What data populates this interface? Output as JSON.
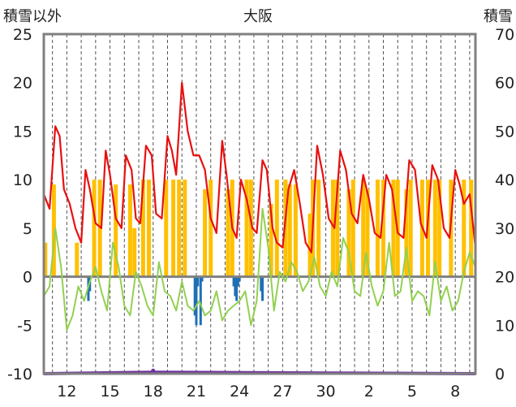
{
  "chart_data": {
    "type": "line",
    "title": "大阪",
    "left_axis_label": "積雪以外",
    "right_axis_label": "積雪",
    "left_ylim": [
      -10,
      25
    ],
    "left_ticks": [
      25,
      20,
      15,
      10,
      5,
      0,
      -5,
      -10
    ],
    "right_ylim": [
      0,
      70
    ],
    "right_ticks": [
      70,
      60,
      50,
      40,
      30,
      20,
      10,
      0
    ],
    "x_ticks": [
      {
        "label": "12",
        "day": 2
      },
      {
        "label": "15",
        "day": 5
      },
      {
        "label": "18",
        "day": 8
      },
      {
        "label": "21",
        "day": 11
      },
      {
        "label": "24",
        "day": 14
      },
      {
        "label": "27",
        "day": 17
      },
      {
        "label": "30",
        "day": 20
      },
      {
        "label": "2",
        "day": 23
      },
      {
        "label": "5",
        "day": 26
      },
      {
        "label": "8",
        "day": 29
      }
    ],
    "x_range_days": [
      0.4,
      30.4
    ],
    "grid": "vertical dashed, one per day",
    "colors": {
      "temperature": "#e81010",
      "humidity_proxy": "#92d050",
      "sunshine": "#ffc000",
      "precipitation": "#1f6fb5",
      "snow": "#7030a0",
      "zero_line": "#808080",
      "frame": "#808080"
    },
    "series": [
      {
        "color": "#e81010",
        "x": [
          0.4,
          0.8,
          1.2,
          1.5,
          1.8,
          2.2,
          2.6,
          3.0,
          3.3,
          3.6,
          4.0,
          4.4,
          4.7,
          5.0,
          5.4,
          5.8,
          6.1,
          6.5,
          6.8,
          7.1,
          7.5,
          7.9,
          8.2,
          8.6,
          9.0,
          9.3,
          9.6,
          10.0,
          10.4,
          10.8,
          11.2,
          11.6,
          12.0,
          12.4,
          12.8,
          13.1,
          13.5,
          13.8,
          14.1,
          14.5,
          14.9,
          15.2,
          15.6,
          15.9,
          16.3,
          16.6,
          17.0,
          17.4,
          17.8,
          18.2,
          18.6,
          19.0,
          19.4,
          19.8,
          20.2,
          20.6,
          21.0,
          21.4,
          21.8,
          22.2,
          22.6,
          23.0,
          23.4,
          23.8,
          24.2,
          24.6,
          25.0,
          25.4,
          25.8,
          26.2,
          26.6,
          27.0,
          27.4,
          27.8,
          28.2,
          28.6,
          29.0,
          29.3,
          29.6,
          30.0,
          30.4
        ],
        "values": [
          8.5,
          7.0,
          15.5,
          14.5,
          9.0,
          7.5,
          5.0,
          3.5,
          11.0,
          9.0,
          5.5,
          5.0,
          13.0,
          10.5,
          6.0,
          5.0,
          12.5,
          11.0,
          6.0,
          5.5,
          13.5,
          12.5,
          6.5,
          6.0,
          14.5,
          13.0,
          10.5,
          20.0,
          15.0,
          12.5,
          12.5,
          11.0,
          6.0,
          4.5,
          14.0,
          10.5,
          5.0,
          4.0,
          10.0,
          8.0,
          5.0,
          4.5,
          12.0,
          11.0,
          5.0,
          3.5,
          3.0,
          9.0,
          11.0,
          7.5,
          3.5,
          2.5,
          13.5,
          10.5,
          6.0,
          5.0,
          13.0,
          11.0,
          6.5,
          5.5,
          10.5,
          8.0,
          4.5,
          4.0,
          10.5,
          9.0,
          4.5,
          4.0,
          12.0,
          11.0,
          5.5,
          4.0,
          11.5,
          10.0,
          5.0,
          4.0,
          11.0,
          9.5,
          7.5,
          8.5,
          3.0
        ]
      },
      {
        "color": "#92d050",
        "x": [
          0.4,
          0.8,
          1.2,
          1.6,
          2.0,
          2.4,
          2.8,
          3.2,
          3.6,
          4.0,
          4.4,
          4.8,
          5.2,
          5.6,
          6.0,
          6.4,
          6.8,
          7.2,
          7.6,
          8.0,
          8.4,
          8.8,
          9.2,
          9.6,
          10.0,
          10.4,
          10.8,
          11.2,
          11.6,
          12.0,
          12.4,
          12.8,
          13.2,
          13.6,
          14.0,
          14.4,
          14.8,
          15.2,
          15.6,
          16.0,
          16.4,
          16.8,
          17.2,
          17.6,
          18.0,
          18.4,
          18.8,
          19.2,
          19.6,
          20.0,
          20.4,
          20.8,
          21.2,
          21.6,
          22.0,
          22.4,
          22.8,
          23.2,
          23.6,
          24.0,
          24.4,
          24.8,
          25.2,
          25.6,
          26.0,
          26.4,
          26.8,
          27.2,
          27.6,
          28.0,
          28.4,
          28.8,
          29.2,
          29.6,
          30.0,
          30.4
        ],
        "values": [
          -2.0,
          -1.0,
          5.0,
          1.0,
          -5.5,
          -4.0,
          -1.0,
          -2.5,
          -0.5,
          1.0,
          -1.5,
          -3.5,
          3.5,
          1.0,
          -3.0,
          -4.0,
          0.5,
          -1.0,
          -3.0,
          -4.0,
          1.5,
          -1.5,
          -2.0,
          -3.5,
          -0.5,
          -3.0,
          -3.5,
          -2.5,
          -4.0,
          -3.5,
          -1.5,
          -4.5,
          -3.5,
          -3.0,
          -2.5,
          -1.5,
          -5.0,
          -2.5,
          7.0,
          3.0,
          -3.5,
          0.5,
          -0.5,
          1.5,
          0.5,
          -1.5,
          -0.5,
          2.0,
          -1.0,
          -2.0,
          0.5,
          -1.0,
          4.0,
          2.5,
          -1.5,
          -2.0,
          2.5,
          -1.0,
          -3.0,
          -1.5,
          3.5,
          -2.0,
          -1.5,
          3.0,
          -2.5,
          -1.5,
          -2.0,
          -4.0,
          1.5,
          -2.5,
          -1.0,
          -3.5,
          -2.5,
          0.5,
          2.5,
          1.0
        ]
      },
      {
        "color": "#ffc000",
        "x": [
          0.5,
          1.1,
          2.7,
          3.9,
          4.3,
          5.4,
          6.4,
          6.7,
          7.3,
          7.7,
          8.9,
          9.4,
          9.8,
          10.2,
          11.6,
          12.0,
          13.2,
          13.5,
          14.5,
          14.8,
          16.2,
          16.6,
          17.2,
          17.5,
          17.9,
          18.9,
          19.1,
          19.5,
          20.5,
          20.8,
          21.6,
          21.9,
          22.6,
          22.9,
          23.6,
          24.0,
          24.7,
          25.0,
          25.6,
          25.9,
          26.7,
          27.1,
          27.6,
          27.9,
          28.7,
          29.6,
          30.1
        ],
        "values": [
          27,
          39,
          27,
          40,
          40,
          39,
          39,
          30,
          40,
          40,
          40,
          40,
          40,
          40,
          38,
          40,
          38,
          40,
          40,
          40,
          35,
          40,
          40,
          39,
          39,
          33,
          40,
          40,
          40,
          40,
          38,
          40,
          40,
          38,
          40,
          40,
          40,
          40,
          38,
          40,
          40,
          40,
          40,
          40,
          40,
          40,
          40
        ]
      },
      {
        "color": "#1f6fb5",
        "x": [
          3.5,
          3.6,
          10.9,
          11.0,
          11.1,
          11.3,
          11.4,
          13.6,
          13.7,
          13.8,
          13.9,
          14.0,
          15.5,
          15.6
        ],
        "values": [
          -2.5,
          -1.5,
          -4.0,
          -5.0,
          -1.0,
          -5.0,
          -0.5,
          -1.0,
          -2.0,
          -2.5,
          -1.0,
          -0.5,
          -1.5,
          -2.5
        ]
      },
      {
        "color": "#7030a0",
        "x": [
          0.4,
          8.0,
          30.4
        ],
        "values": [
          0,
          0.3,
          0
        ]
      }
    ]
  }
}
